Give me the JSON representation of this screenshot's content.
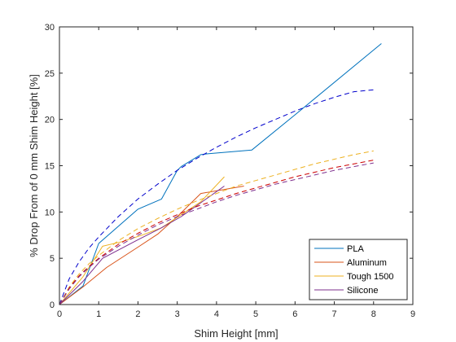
{
  "chart_data": {
    "type": "line",
    "title": "",
    "xlabel": "Shim Height [mm]",
    "ylabel": "% Drop From of 0 mm Shim Height [%]",
    "xlim": [
      0,
      9
    ],
    "ylim": [
      0,
      30
    ],
    "xticks": [
      "0",
      "1",
      "2",
      "3",
      "4",
      "5",
      "6",
      "7",
      "8",
      "9"
    ],
    "yticks": [
      "0",
      "5",
      "10",
      "15",
      "20",
      "25",
      "30"
    ],
    "grid": false,
    "legend_position": "bottom-right",
    "series": [
      {
        "name": "PLA",
        "color": "#0072bd",
        "style": "solid",
        "x": [
          0,
          0.6,
          1,
          2,
          2.6,
          3,
          3.1,
          3.6,
          3.8,
          4.9,
          6,
          8.2
        ],
        "y": [
          0,
          2,
          6.6,
          10.3,
          11.4,
          14.5,
          14.9,
          16.2,
          16.3,
          16.7,
          20.5,
          28.2
        ]
      },
      {
        "name": "Aluminum",
        "color": "#d95319",
        "style": "solid",
        "x": [
          0,
          0.6,
          1.2,
          2,
          2.5,
          3,
          3.6,
          4.7
        ],
        "y": [
          0,
          1.9,
          4,
          6.2,
          7.6,
          9.5,
          12,
          12.8
        ]
      },
      {
        "name": "Tough 1500",
        "color": "#edb120",
        "style": "solid",
        "x": [
          0,
          0.6,
          1.1,
          1.6,
          2.1,
          2.6,
          3.1,
          3.6,
          4.2
        ],
        "y": [
          0,
          3,
          6.3,
          6.8,
          7.5,
          8.3,
          9.7,
          11.1,
          13.8
        ]
      },
      {
        "name": "Silicone",
        "color": "#7e2f8e",
        "style": "solid",
        "x": [
          0,
          0.6,
          1.1,
          2,
          2.6,
          3.1,
          3.6,
          4.2
        ],
        "y": [
          0,
          2.5,
          5,
          7,
          8.3,
          9.5,
          11,
          12.8
        ]
      },
      {
        "name": "",
        "color": "#0000cc",
        "style": "dashed",
        "x": [
          0,
          0.25,
          0.5,
          0.75,
          1,
          1.5,
          2,
          2.5,
          3,
          3.5,
          4,
          4.5,
          5,
          5.5,
          6,
          6.5,
          7,
          7.5,
          8
        ],
        "y": [
          0,
          2.8,
          4.6,
          6.1,
          7.3,
          9.5,
          11.4,
          13,
          14.5,
          15.8,
          17,
          18.1,
          19.1,
          20,
          20.9,
          21.7,
          22.4,
          23,
          23.2
        ]
      },
      {
        "name": "",
        "color": "#edb120",
        "style": "dashed",
        "x": [
          0,
          0.25,
          0.5,
          0.75,
          1,
          1.5,
          2,
          2.5,
          3,
          3.5,
          4,
          4.5,
          5,
          5.5,
          6,
          6.5,
          7,
          7.5,
          8
        ],
        "y": [
          0,
          1.9,
          3.3,
          4.4,
          5.3,
          6.9,
          8.2,
          9.3,
          10.3,
          11.2,
          12,
          12.8,
          13.4,
          14,
          14.6,
          15.2,
          15.7,
          16.2,
          16.6
        ]
      },
      {
        "name": "",
        "color": "#cc0000",
        "style": "dashed",
        "x": [
          0,
          0.25,
          0.5,
          0.75,
          1,
          1.5,
          2,
          2.5,
          3,
          3.5,
          4,
          4.5,
          5,
          5.5,
          6,
          6.5,
          7,
          7.5,
          8
        ],
        "y": [
          0,
          1.8,
          3.1,
          4.1,
          5,
          6.5,
          7.7,
          8.8,
          9.7,
          10.6,
          11.3,
          12,
          12.6,
          13.2,
          13.8,
          14.3,
          14.8,
          15.2,
          15.6
        ]
      },
      {
        "name": "",
        "color": "#7e2f8e",
        "style": "dashed",
        "x": [
          0,
          0.25,
          0.5,
          0.75,
          1,
          1.5,
          2,
          2.5,
          3,
          3.5,
          4,
          4.5,
          5,
          5.5,
          6,
          6.5,
          7,
          7.5,
          8
        ],
        "y": [
          0,
          1.7,
          3,
          4,
          4.9,
          6.3,
          7.5,
          8.6,
          9.5,
          10.3,
          11.1,
          11.8,
          12.4,
          13,
          13.5,
          14,
          14.5,
          14.9,
          15.3
        ]
      }
    ]
  }
}
